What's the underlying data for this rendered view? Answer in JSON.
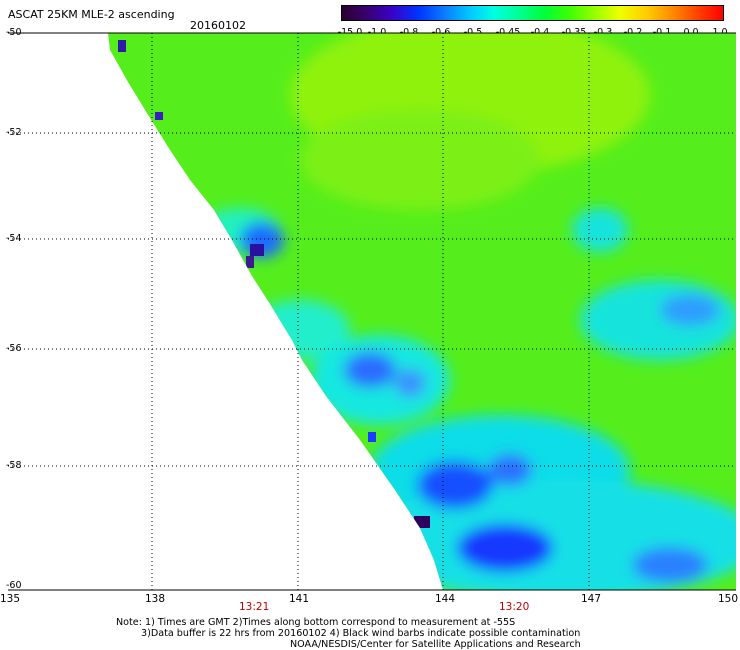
{
  "header": {
    "title": "ASCAT 25KM MLE-2 ascending",
    "date": "20160102"
  },
  "colorbar": {
    "ticks": [
      "-15.0",
      "-1.0",
      "-0.8",
      "-0.6",
      "-0.5",
      "-0.45",
      "-0.4",
      "-0.35",
      "-0.3",
      "-0.2",
      "-0.1",
      "0.0",
      "1.0"
    ]
  },
  "axes": {
    "y_ticks": [
      "-50",
      "-52",
      "-54",
      "-56",
      "-58",
      "-60"
    ],
    "x_ticks": [
      "135",
      "138",
      "141",
      "144",
      "147",
      "150"
    ],
    "times": [
      "13:21",
      "13:20"
    ]
  },
  "footer": {
    "line1": "Note: 1) Times are GMT 2)Times along bottom correspond to measurement at -55S",
    "line2": "3)Data buffer is 22 hrs from 20160102 4) Black wind barbs indicate possible contamination",
    "line3": "NOAA/NESDIS/Center for Satellite Applications and Research"
  },
  "colors": {
    "background": "#ffffff",
    "time_label": "#c00000",
    "grid_dots": "#000000"
  }
}
